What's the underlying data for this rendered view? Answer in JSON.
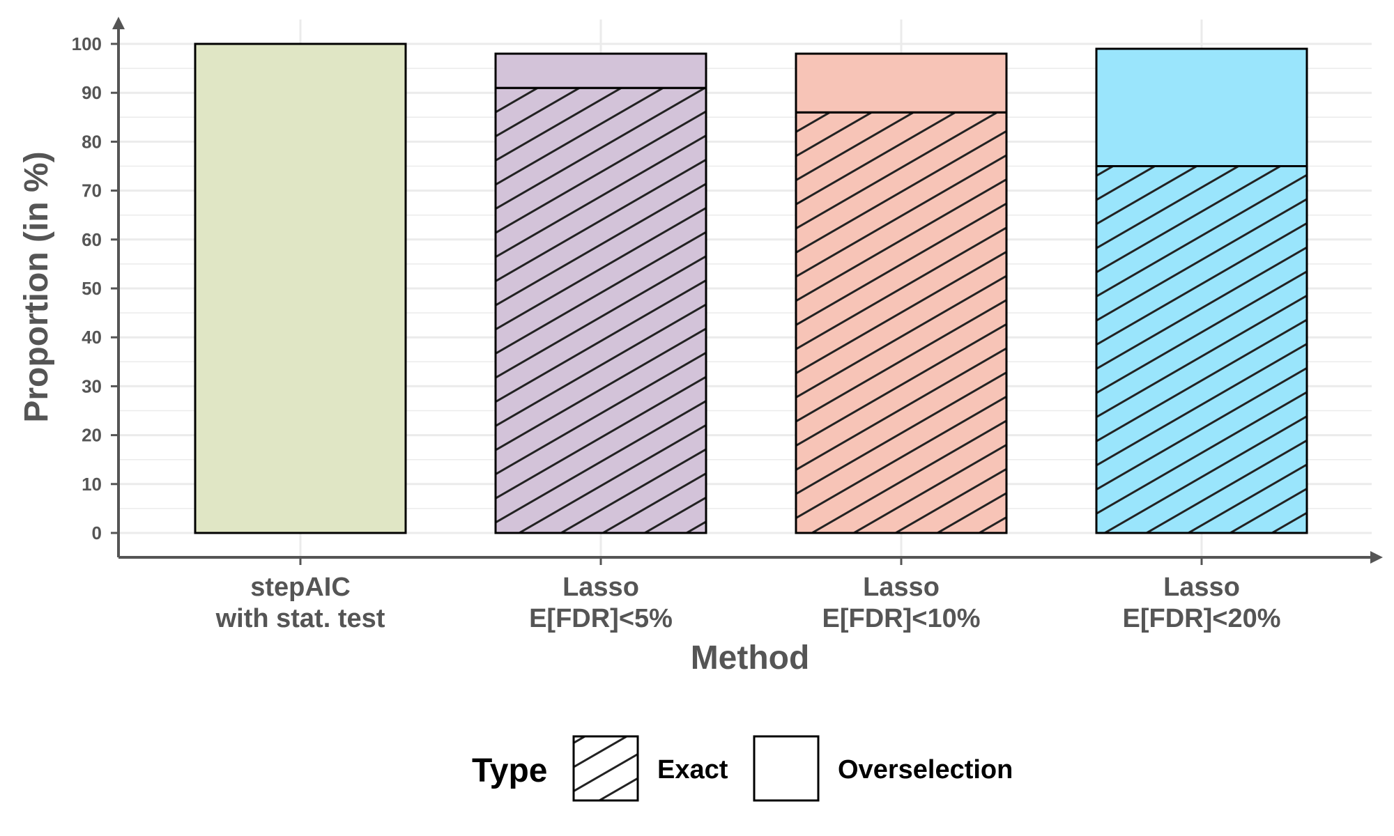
{
  "chart_data": {
    "type": "bar",
    "stacked": true,
    "categories": [
      [
        "stepAIC",
        "with stat. test"
      ],
      [
        "Lasso",
        "E[FDR]<5%"
      ],
      [
        "Lasso",
        "E[FDR]<10%"
      ],
      [
        "Lasso",
        "E[FDR]<20%"
      ]
    ],
    "bar_colors": [
      "#e0e6c5",
      "#d3c3d9",
      "#f7c4b7",
      "#9ae5fc"
    ],
    "series": [
      {
        "name": "Exact",
        "pattern": "hatched",
        "values": [
          0,
          91,
          86,
          75
        ]
      },
      {
        "name": "Overselection",
        "pattern": "solid",
        "values": [
          100,
          7,
          12,
          24
        ]
      }
    ],
    "xlabel": "Method",
    "ylabel": "Proportion (in %)",
    "ylim": [
      0,
      100
    ],
    "yticks": [
      0,
      10,
      20,
      30,
      40,
      50,
      60,
      70,
      80,
      90,
      100
    ],
    "grid": true,
    "legend": {
      "title": "Type",
      "placement": "bottom",
      "entries": [
        "Exact",
        "Overselection"
      ]
    }
  }
}
